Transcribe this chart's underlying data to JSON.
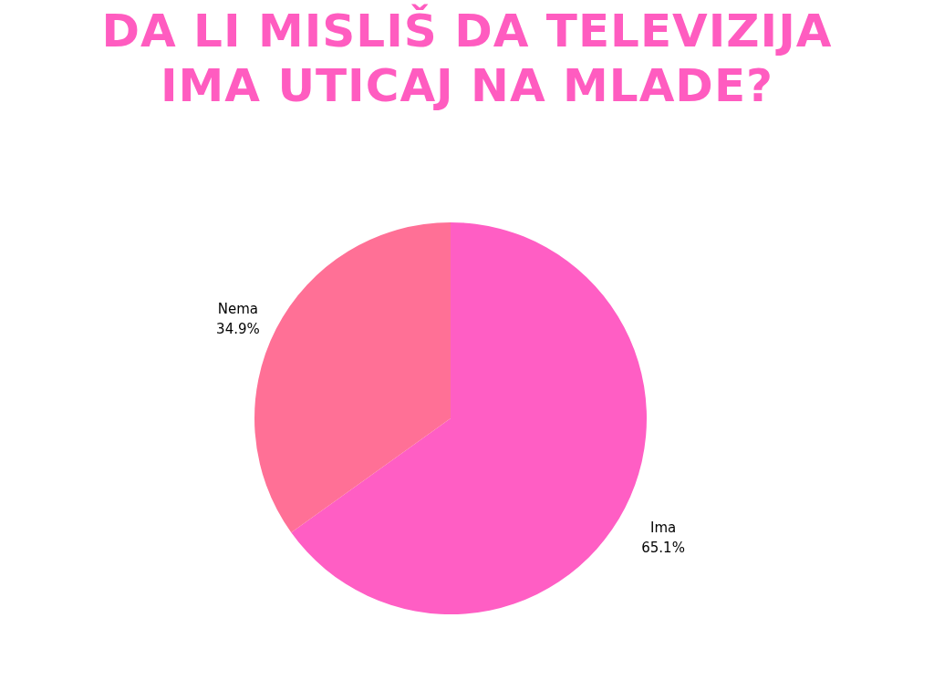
{
  "chart_data": {
    "type": "pie",
    "title": "DA LI MISLIŠ DA TELEVIZIJA IMA UTICAJ NA MLADE?",
    "categories": [
      "Ima",
      "Nema"
    ],
    "values": [
      65.1,
      34.9
    ],
    "colors": [
      "#ff5ec4",
      "#ff7096"
    ],
    "value_labels": [
      "65.1%",
      "34.9%"
    ]
  }
}
